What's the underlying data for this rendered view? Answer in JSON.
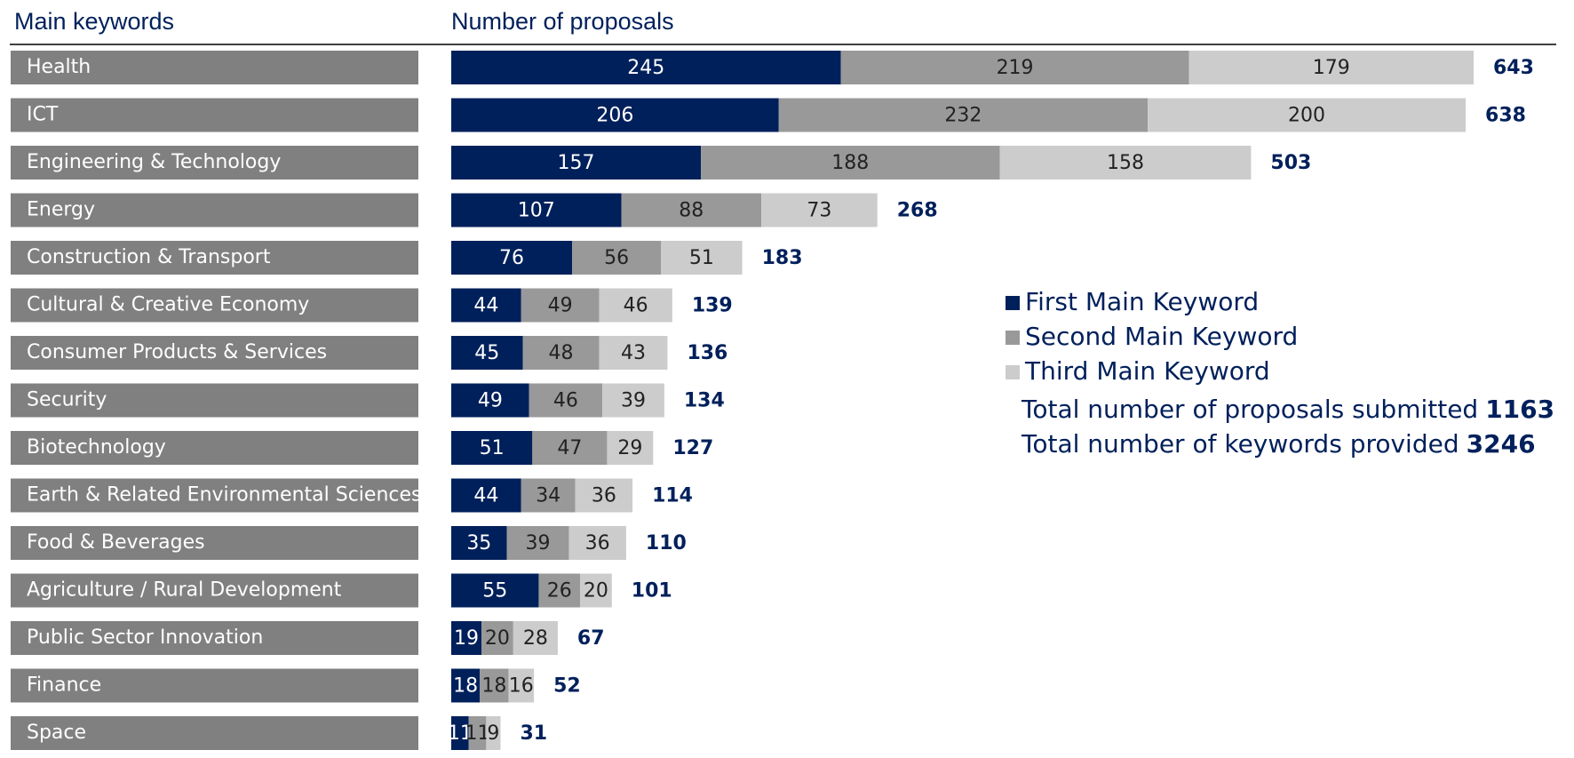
{
  "chart_data": {
    "type": "stacked-bar-horizontal",
    "category_header": "Main keywords",
    "value_header": "Number of proposals",
    "categories": [
      "Health",
      "ICT",
      "Engineering & Technology",
      "Energy",
      "Construction & Transport",
      "Cultural & Creative Economy",
      "Consumer Products & Services",
      "Security",
      "Biotechnology",
      "Earth & Related Environmental Sciences",
      "Food & Beverages",
      "Agriculture / Rural Development",
      "Public Sector Innovation",
      "Finance",
      "Space"
    ],
    "series": [
      {
        "name": "First Main Keyword",
        "color": "#00205b",
        "values": [
          245,
          206,
          157,
          107,
          76,
          44,
          45,
          49,
          51,
          44,
          35,
          55,
          19,
          18,
          11
        ]
      },
      {
        "name": "Second Main Keyword",
        "color": "#999999",
        "values": [
          219,
          232,
          188,
          88,
          56,
          49,
          48,
          46,
          47,
          34,
          39,
          26,
          20,
          18,
          11
        ]
      },
      {
        "name": "Third Main Keyword",
        "color": "#cccccc",
        "values": [
          179,
          200,
          158,
          73,
          51,
          46,
          43,
          39,
          29,
          36,
          36,
          20,
          28,
          16,
          9
        ]
      }
    ],
    "totals": [
      643,
      638,
      503,
      268,
      183,
      139,
      136,
      134,
      127,
      114,
      110,
      101,
      67,
      52,
      31
    ],
    "summary": [
      {
        "label": "Total number of proposals submitted",
        "value": 1163
      },
      {
        "label": "Total number of keywords provided",
        "value": 3246
      }
    ]
  }
}
